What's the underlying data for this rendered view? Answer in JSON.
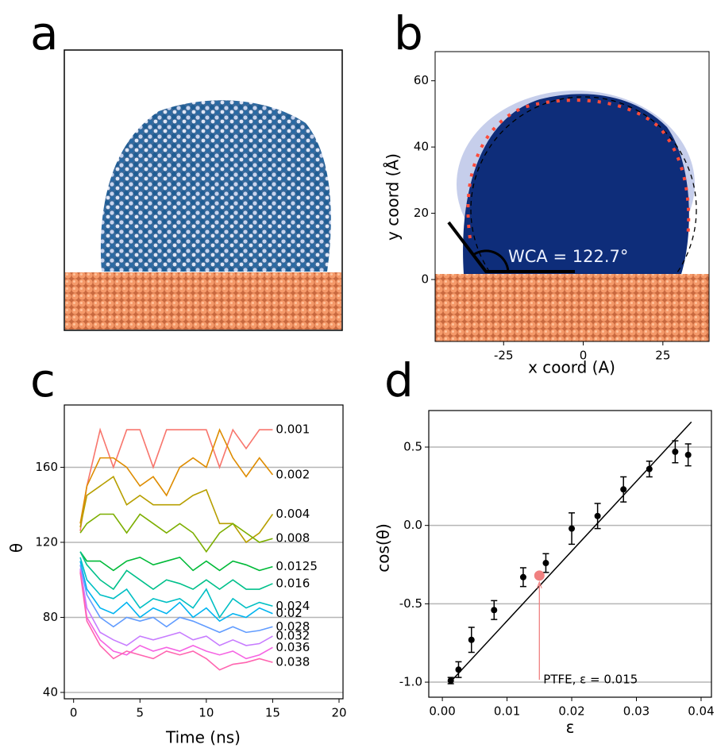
{
  "chart_data": [
    {
      "type": "image",
      "panel_label": "a"
    },
    {
      "type": "image",
      "panel_label": "b",
      "xlabel": "x coord (A)",
      "ylabel": "y coord (Å)",
      "xlim": [
        -46.5,
        39.5
      ],
      "ylim": [
        -18.7,
        68.8
      ],
      "xticks": [
        -25,
        0,
        25
      ],
      "yticks": [
        0,
        20,
        40,
        60
      ],
      "annotation": "WCA = 122.7°"
    },
    {
      "type": "line",
      "panel_label": "c",
      "xlabel": "Time (ns)",
      "ylabel": "θ",
      "xlim": [
        -0.7,
        20.3
      ],
      "ylim": [
        36.6,
        193.2
      ],
      "xticks": [
        0,
        5,
        10,
        15,
        20
      ],
      "yticks": [
        40,
        80,
        120,
        160
      ],
      "grid": true,
      "x": [
        0.5,
        1,
        2,
        3,
        4,
        5,
        6,
        7,
        8,
        9,
        10,
        11,
        12,
        13,
        14,
        15
      ],
      "series": [
        {
          "name": "0.001",
          "color": "#f8766d",
          "values": [
            126,
            150,
            180,
            160,
            180,
            180,
            160,
            180,
            180,
            180,
            180,
            160,
            180,
            170,
            180,
            180
          ]
        },
        {
          "name": "0.002",
          "color": "#de8c00",
          "values": [
            130,
            150,
            165,
            165,
            160,
            150,
            155,
            145,
            160,
            165,
            160,
            180,
            165,
            155,
            165,
            156
          ]
        },
        {
          "name": "0.004",
          "color": "#b79f00",
          "values": [
            128,
            145,
            150,
            155,
            140,
            145,
            140,
            140,
            140,
            145,
            148,
            130,
            130,
            120,
            125,
            135
          ]
        },
        {
          "name": "0.008",
          "color": "#7cae00",
          "values": [
            125,
            130,
            135,
            135,
            125,
            135,
            130,
            125,
            130,
            125,
            115,
            125,
            130,
            125,
            120,
            122
          ]
        },
        {
          "name": "0.0125",
          "color": "#00ba38",
          "values": [
            115,
            110,
            110,
            105,
            110,
            112,
            108,
            110,
            112,
            105,
            110,
            105,
            110,
            108,
            105,
            107
          ]
        },
        {
          "name": "0.016",
          "color": "#00c08b",
          "values": [
            115,
            108,
            100,
            95,
            105,
            100,
            95,
            100,
            98,
            95,
            100,
            95,
            100,
            95,
            95,
            98
          ]
        },
        {
          "name": "0.024",
          "color": "#00bfc4",
          "values": [
            112,
            100,
            92,
            90,
            95,
            85,
            90,
            88,
            90,
            85,
            95,
            80,
            90,
            85,
            88,
            86
          ]
        },
        {
          "name": "0.02",
          "color": "#00b4f0",
          "values": [
            110,
            95,
            85,
            82,
            88,
            80,
            85,
            82,
            88,
            80,
            85,
            78,
            82,
            80,
            85,
            82
          ]
        },
        {
          "name": "0.028",
          "color": "#619cff",
          "values": [
            108,
            92,
            80,
            75,
            80,
            78,
            80,
            75,
            80,
            78,
            75,
            72,
            75,
            72,
            73,
            75
          ]
        },
        {
          "name": "0.032",
          "color": "#c77cff",
          "values": [
            106,
            85,
            72,
            68,
            65,
            70,
            68,
            70,
            72,
            68,
            70,
            65,
            68,
            65,
            66,
            70
          ]
        },
        {
          "name": "0.036",
          "color": "#f564e3",
          "values": [
            105,
            80,
            68,
            62,
            60,
            65,
            62,
            64,
            62,
            65,
            62,
            60,
            62,
            58,
            60,
            64
          ]
        },
        {
          "name": "0.038",
          "color": "#ff64b0",
          "values": [
            104,
            78,
            65,
            58,
            62,
            60,
            58,
            62,
            60,
            62,
            58,
            52,
            55,
            56,
            58,
            56
          ]
        }
      ]
    },
    {
      "type": "scatter",
      "panel_label": "d",
      "xlabel": "ε",
      "ylabel": "cos(θ)",
      "xlim": [
        -0.0021,
        0.0416
      ],
      "ylim": [
        -1.096,
        0.733
      ],
      "grid": true,
      "color": "#000000",
      "xticks": [
        {
          "value": 0,
          "label": "0.00"
        },
        {
          "value": 0.01,
          "label": "0.01"
        },
        {
          "value": 0.02,
          "label": "0.02"
        },
        {
          "value": 0.03,
          "label": "0.03"
        },
        {
          "value": 0.04,
          "label": "0.04"
        }
      ],
      "yticks": [
        {
          "value": -1,
          "label": "-1.0"
        },
        -0.5,
        {
          "value": 0,
          "label": "0.0"
        },
        0.5
      ],
      "x": [
        0.0013,
        0.0025,
        0.0045,
        0.008,
        0.0125,
        0.016,
        0.02,
        0.024,
        0.028,
        0.032,
        0.036,
        0.038
      ],
      "values": [
        -0.99,
        -0.92,
        -0.73,
        -0.54,
        -0.33,
        -0.24,
        -0.02,
        0.06,
        0.23,
        0.36,
        0.47,
        0.45
      ],
      "errors": [
        0.02,
        0.05,
        0.08,
        0.06,
        0.06,
        0.06,
        0.1,
        0.08,
        0.08,
        0.05,
        0.07,
        0.07
      ],
      "fit": {
        "x": [
          0.001,
          0.0385
        ],
        "y": [
          -1.01,
          0.66
        ]
      },
      "highlight": {
        "x": 0.015,
        "y": -0.32,
        "label": "PTFE, ε = 0.015",
        "color": "#f08080"
      }
    }
  ]
}
